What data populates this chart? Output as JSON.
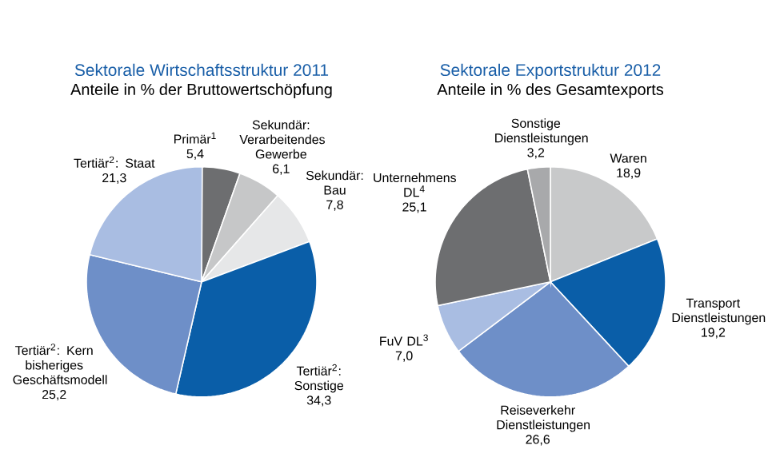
{
  "chart_data": [
    {
      "type": "pie",
      "title": "Sektorale Wirtschaftsstruktur 2011",
      "subtitle": "Anteile in % der Bruttowertschöpfung",
      "categories": [
        "Primär$^{1}$",
        "Sekundär: Verarbeitendes Gewerbe",
        "Sekundär: Bau",
        "Tertiär$^{2}$: Sonstige",
        "Tertiär$^{2}$: Kern bisheriges Geschäftsmodell",
        "Tertiär$^{2}$: Staat"
      ],
      "values": [
        5.4,
        6.1,
        7.8,
        34.3,
        25.2,
        21.3
      ],
      "value_labels": [
        "5,4",
        "6,1",
        "7,8",
        "34,3",
        "25,2",
        "21,3"
      ],
      "colors": [
        "#6d6e70",
        "#c6c7c8",
        "#e6e7e8",
        "#0a5ea8",
        "#6e8fc8",
        "#a9bde2"
      ]
    },
    {
      "type": "pie",
      "title": "Sektorale Exportstruktur 2012",
      "subtitle": "Anteile in % des Gesamtexports",
      "categories": [
        "Waren",
        "Transport Dienstleistungen",
        "Reiseverkehr Dienstleistungen",
        "FuV DL$^{3}$",
        "Unternehmens DL$^{4}$",
        "Sonstige Dienstleistungen"
      ],
      "values": [
        18.9,
        19.2,
        26.6,
        7.0,
        25.1,
        3.2
      ],
      "value_labels": [
        "18,9",
        "19,2",
        "26,6",
        "7,0",
        "25,1",
        "3,2"
      ],
      "colors": [
        "#c8c9ca",
        "#0a5ea8",
        "#6e8fc8",
        "#a9bde2",
        "#6d6e70",
        "#a8a9ab"
      ]
    }
  ]
}
